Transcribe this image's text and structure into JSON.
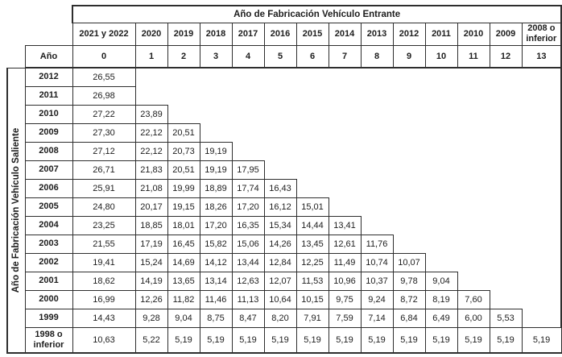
{
  "table": {
    "top_header": "Año de Fabricación Vehículo Entrante",
    "left_header": "Año de Fabricación Vehículo Saliente",
    "age_label": "Año",
    "entering_years": [
      "2021 y 2022",
      "2020",
      "2019",
      "2018",
      "2017",
      "2016",
      "2015",
      "2014",
      "2013",
      "2012",
      "2011",
      "2010",
      "2009",
      "2008 o inferior"
    ],
    "ages": [
      "0",
      "1",
      "2",
      "3",
      "4",
      "5",
      "6",
      "7",
      "8",
      "9",
      "10",
      "11",
      "12",
      "13"
    ],
    "rows": [
      {
        "year": "2012",
        "values": [
          "26,55"
        ]
      },
      {
        "year": "2011",
        "values": [
          "26,98"
        ]
      },
      {
        "year": "2010",
        "values": [
          "27,22",
          "23,89"
        ]
      },
      {
        "year": "2009",
        "values": [
          "27,30",
          "22,12",
          "20,51"
        ]
      },
      {
        "year": "2008",
        "values": [
          "27,12",
          "22,12",
          "20,73",
          "19,19"
        ]
      },
      {
        "year": "2007",
        "values": [
          "26,71",
          "21,83",
          "20,51",
          "19,19",
          "17,95"
        ]
      },
      {
        "year": "2006",
        "values": [
          "25,91",
          "21,08",
          "19,99",
          "18,89",
          "17,74",
          "16,43"
        ]
      },
      {
        "year": "2005",
        "values": [
          "24,80",
          "20,17",
          "19,15",
          "18,26",
          "17,20",
          "16,12",
          "15,01"
        ]
      },
      {
        "year": "2004",
        "values": [
          "23,25",
          "18,85",
          "18,01",
          "17,20",
          "16,35",
          "15,34",
          "14,44",
          "13,41"
        ]
      },
      {
        "year": "2003",
        "values": [
          "21,55",
          "17,19",
          "16,45",
          "15,82",
          "15,06",
          "14,26",
          "13,45",
          "12,61",
          "11,76"
        ]
      },
      {
        "year": "2002",
        "values": [
          "19,41",
          "15,24",
          "14,69",
          "14,12",
          "13,44",
          "12,84",
          "12,25",
          "11,49",
          "10,74",
          "10,07"
        ]
      },
      {
        "year": "2001",
        "values": [
          "18,62",
          "14,19",
          "13,65",
          "13,14",
          "12,63",
          "12,07",
          "11,53",
          "10,96",
          "10,37",
          "9,78",
          "9,04"
        ]
      },
      {
        "year": "2000",
        "values": [
          "16,99",
          "12,26",
          "11,82",
          "11,46",
          "11,13",
          "10,64",
          "10,15",
          "9,75",
          "9,24",
          "8,72",
          "8,19",
          "7,60"
        ]
      },
      {
        "year": "1999",
        "values": [
          "14,43",
          "9,28",
          "9,04",
          "8,75",
          "8,47",
          "8,20",
          "7,91",
          "7,59",
          "7,14",
          "6,84",
          "6,49",
          "6,00",
          "5,53"
        ]
      },
      {
        "year": "1998 o inferior",
        "values": [
          "10,63",
          "5,22",
          "5,19",
          "5,19",
          "5,19",
          "5,19",
          "5,19",
          "5,19",
          "5,19",
          "5,19",
          "5,19",
          "5,19",
          "5,19",
          "5,19"
        ]
      }
    ]
  }
}
